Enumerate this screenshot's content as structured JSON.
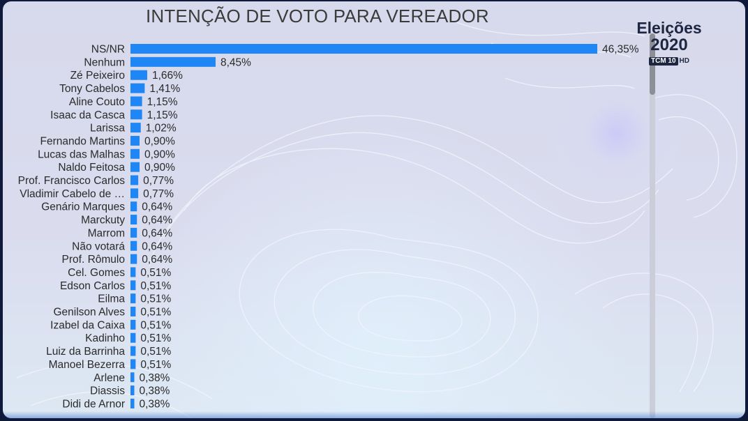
{
  "title": "INTENÇÃO DE VOTO PARA VEREADOR",
  "logo": {
    "title": "Eleições",
    "year": "2020",
    "station": "TCM 10",
    "hd": "HD"
  },
  "colors": {
    "bar": "#1e86f5",
    "label": "#2a2a2a",
    "title": "#3b3b3b"
  },
  "chart_data": {
    "type": "bar",
    "orientation": "horizontal",
    "title": "INTENÇÃO DE VOTO PARA VEREADOR",
    "xlabel": "",
    "ylabel": "",
    "xlim": [
      0,
      46.35
    ],
    "grid": false,
    "legend": "none",
    "categories": [
      "NS/NR",
      "Nenhum",
      "Zé Peixeiro",
      "Tony Cabelos",
      "Aline Couto",
      "Isaac da Casca",
      "Larissa",
      "Fernando Martins",
      "Lucas das Malhas",
      "Naldo Feitosa",
      "Prof. Francisco Carlos",
      "Vladimir Cabelo de …",
      "Genário Marques",
      "Marckuty",
      "Marrom",
      "Não votará",
      "Prof. Rômulo",
      "Cel. Gomes",
      "Edson Carlos",
      "Eilma",
      "Genilson Alves",
      "Izabel da Caixa",
      "Kadinho",
      "Luiz da Barrinha",
      "Manoel Bezerra",
      "Arlene",
      "Diassis",
      "Didi de Arnor"
    ],
    "values": [
      46.35,
      8.45,
      1.66,
      1.41,
      1.15,
      1.15,
      1.02,
      0.9,
      0.9,
      0.9,
      0.77,
      0.77,
      0.64,
      0.64,
      0.64,
      0.64,
      0.64,
      0.51,
      0.51,
      0.51,
      0.51,
      0.51,
      0.51,
      0.51,
      0.51,
      0.38,
      0.38,
      0.38
    ],
    "data_labels": [
      "46,35%",
      "8,45%",
      "1,66%",
      "1,41%",
      "1,15%",
      "1,15%",
      "1,02%",
      "0,90%",
      "0,90%",
      "0,90%",
      "0,77%",
      "0,77%",
      "0,64%",
      "0,64%",
      "0,64%",
      "0,64%",
      "0,64%",
      "0,51%",
      "0,51%",
      "0,51%",
      "0,51%",
      "0,51%",
      "0,51%",
      "0,51%",
      "0,51%",
      "0,38%",
      "0,38%",
      "0,38%"
    ]
  }
}
